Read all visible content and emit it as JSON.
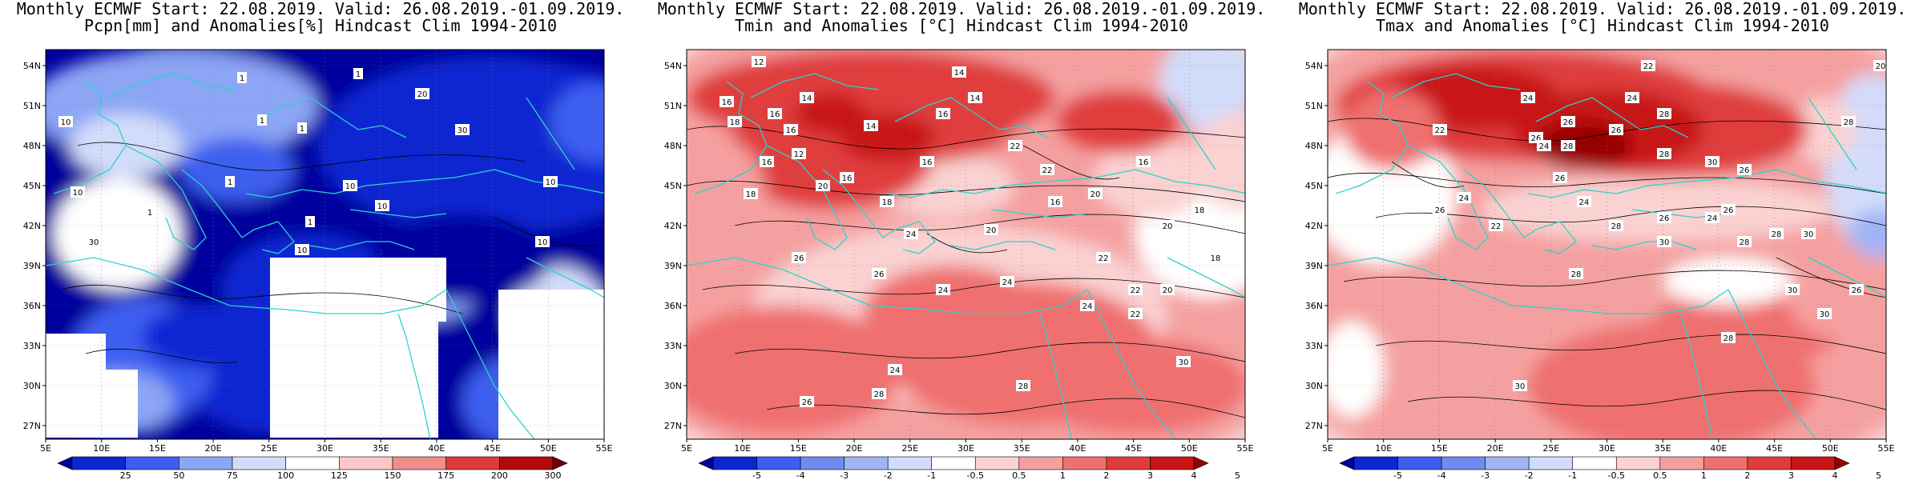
{
  "panels": [
    {
      "id": "pcpn",
      "title1": "Monthly ECMWF Start: 22.08.2019. Valid: 26.08.2019.-01.09.2019.",
      "title2": "Pcpn[mm] and Anomalies[%] Hindcast Clim 1994-2010",
      "lat_labels": [
        "54N",
        "51N",
        "48N",
        "45N",
        "42N",
        "39N",
        "36N",
        "33N",
        "30N",
        "27N"
      ],
      "lon_labels": [
        "5E",
        "10E",
        "15E",
        "20E",
        "25E",
        "30E",
        "35E",
        "40E",
        "45E",
        "50E",
        "55E"
      ],
      "colorbar_ticks": [
        "25",
        "50",
        "75",
        "100",
        "125",
        "150",
        "175",
        "200",
        "300"
      ],
      "colorbar_colors": [
        "#00009e",
        "#0a28d2",
        "#3c5ff0",
        "#8ca5f5",
        "#d2dcfa",
        "#ffffff",
        "#fac8c8",
        "#f08c8c",
        "#dc3c3c",
        "#b40a0a",
        "#6e0000"
      ],
      "contour_labels": [
        "1",
        "1",
        "1",
        "1",
        "1",
        "1",
        "1",
        "10",
        "10",
        "10",
        "10",
        "10",
        "10",
        "20",
        "30",
        "30",
        "10"
      ]
    },
    {
      "id": "tmin",
      "title1": "Monthly ECMWF Start: 22.08.2019. Valid: 26.08.2019.-01.09.2019.",
      "title2": "Tmin and Anomalies [°C] Hindcast Clim 1994-2010",
      "lat_labels": [
        "54N",
        "51N",
        "48N",
        "45N",
        "42N",
        "39N",
        "36N",
        "33N",
        "30N",
        "27N"
      ],
      "lon_labels": [
        "5E",
        "10E",
        "15E",
        "20E",
        "25E",
        "30E",
        "35E",
        "40E",
        "45E",
        "50E",
        "55E"
      ],
      "colorbar_ticks": [
        "-5",
        "-4",
        "-3",
        "-2",
        "-1",
        "-0.5",
        "0.5",
        "1",
        "2",
        "3",
        "4",
        "5"
      ],
      "colorbar_colors": [
        "#00009e",
        "#0a28d2",
        "#3c5ff0",
        "#6e8cf0",
        "#a0b4f5",
        "#d2dcfa",
        "#ffffff",
        "#fad2d2",
        "#f5a0a0",
        "#f07070",
        "#e03c3c",
        "#c81414",
        "#960000"
      ],
      "contour_labels": [
        "14",
        "12",
        "16",
        "16",
        "14",
        "18",
        "16",
        "14",
        "16",
        "14",
        "16",
        "20",
        "18",
        "12",
        "16",
        "22",
        "18",
        "16",
        "22",
        "24",
        "20",
        "16",
        "26",
        "20",
        "22",
        "26",
        "24",
        "24",
        "24",
        "22",
        "30",
        "28",
        "28",
        "26",
        "24",
        "16",
        "20",
        "18",
        "18",
        "22",
        "20"
      ]
    },
    {
      "id": "tmax",
      "title1": "Monthly ECMWF Start: 22.08.2019. Valid: 26.08.2019.-01.09.2019.",
      "title2": "Tmax and Anomalies [°C] Hindcast Clim 1994-2010",
      "lat_labels": [
        "54N",
        "51N",
        "48N",
        "45N",
        "42N",
        "39N",
        "36N",
        "33N",
        "30N",
        "27N"
      ],
      "lon_labels": [
        "5E",
        "10E",
        "15E",
        "20E",
        "25E",
        "30E",
        "35E",
        "40E",
        "45E",
        "50E",
        "55E"
      ],
      "colorbar_ticks": [
        "-5",
        "-4",
        "-3",
        "-2",
        "-1",
        "-0.5",
        "0.5",
        "1",
        "2",
        "3",
        "4",
        "5"
      ],
      "colorbar_colors": [
        "#00009e",
        "#0a28d2",
        "#3c5ff0",
        "#6e8cf0",
        "#a0b4f5",
        "#d2dcfa",
        "#ffffff",
        "#fad2d2",
        "#f5a0a0",
        "#f07070",
        "#e03c3c",
        "#c81414",
        "#960000"
      ],
      "contour_labels": [
        "22",
        "20",
        "24",
        "26",
        "26",
        "28",
        "28",
        "24",
        "26",
        "22",
        "28",
        "30",
        "26",
        "24",
        "28",
        "26",
        "24",
        "26",
        "24",
        "22",
        "26",
        "24",
        "28",
        "30",
        "28",
        "30",
        "30",
        "26",
        "28",
        "28",
        "30",
        "26",
        "30",
        "28"
      ]
    }
  ]
}
